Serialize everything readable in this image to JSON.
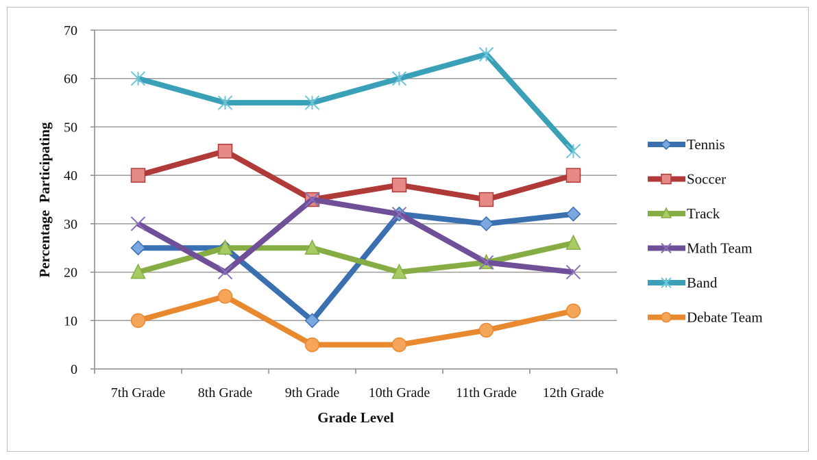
{
  "chart_data": {
    "type": "line",
    "title": "",
    "xlabel": "Grade Level",
    "ylabel": "Percentage  Participating",
    "categories": [
      "7th Grade",
      "8th Grade",
      "9th Grade",
      "10th Grade",
      "11th Grade",
      "12th Grade"
    ],
    "ylim": [
      0,
      70
    ],
    "yticks": [
      0,
      10,
      20,
      30,
      40,
      50,
      60,
      70
    ],
    "grid": true,
    "legend_position": "right",
    "series": [
      {
        "name": "Tennis",
        "values": [
          25,
          25,
          10,
          32,
          30,
          32
        ],
        "color": "#3a6fb0",
        "marker": "diamond"
      },
      {
        "name": "Soccer",
        "values": [
          40,
          45,
          35,
          38,
          35,
          40
        ],
        "color": "#b03a38",
        "marker": "square"
      },
      {
        "name": "Track",
        "values": [
          20,
          25,
          25,
          20,
          22,
          26
        ],
        "color": "#86ad43",
        "marker": "triangle"
      },
      {
        "name": "Math Team",
        "values": [
          30,
          20,
          35,
          32,
          22,
          20
        ],
        "color": "#6e4f98",
        "marker": "x"
      },
      {
        "name": "Band",
        "values": [
          60,
          55,
          55,
          60,
          65,
          45
        ],
        "color": "#3aa0b8",
        "marker": "star"
      },
      {
        "name": "Debate Team",
        "values": [
          10,
          15,
          5,
          5,
          8,
          12
        ],
        "color": "#e8892f",
        "marker": "circle"
      }
    ]
  }
}
